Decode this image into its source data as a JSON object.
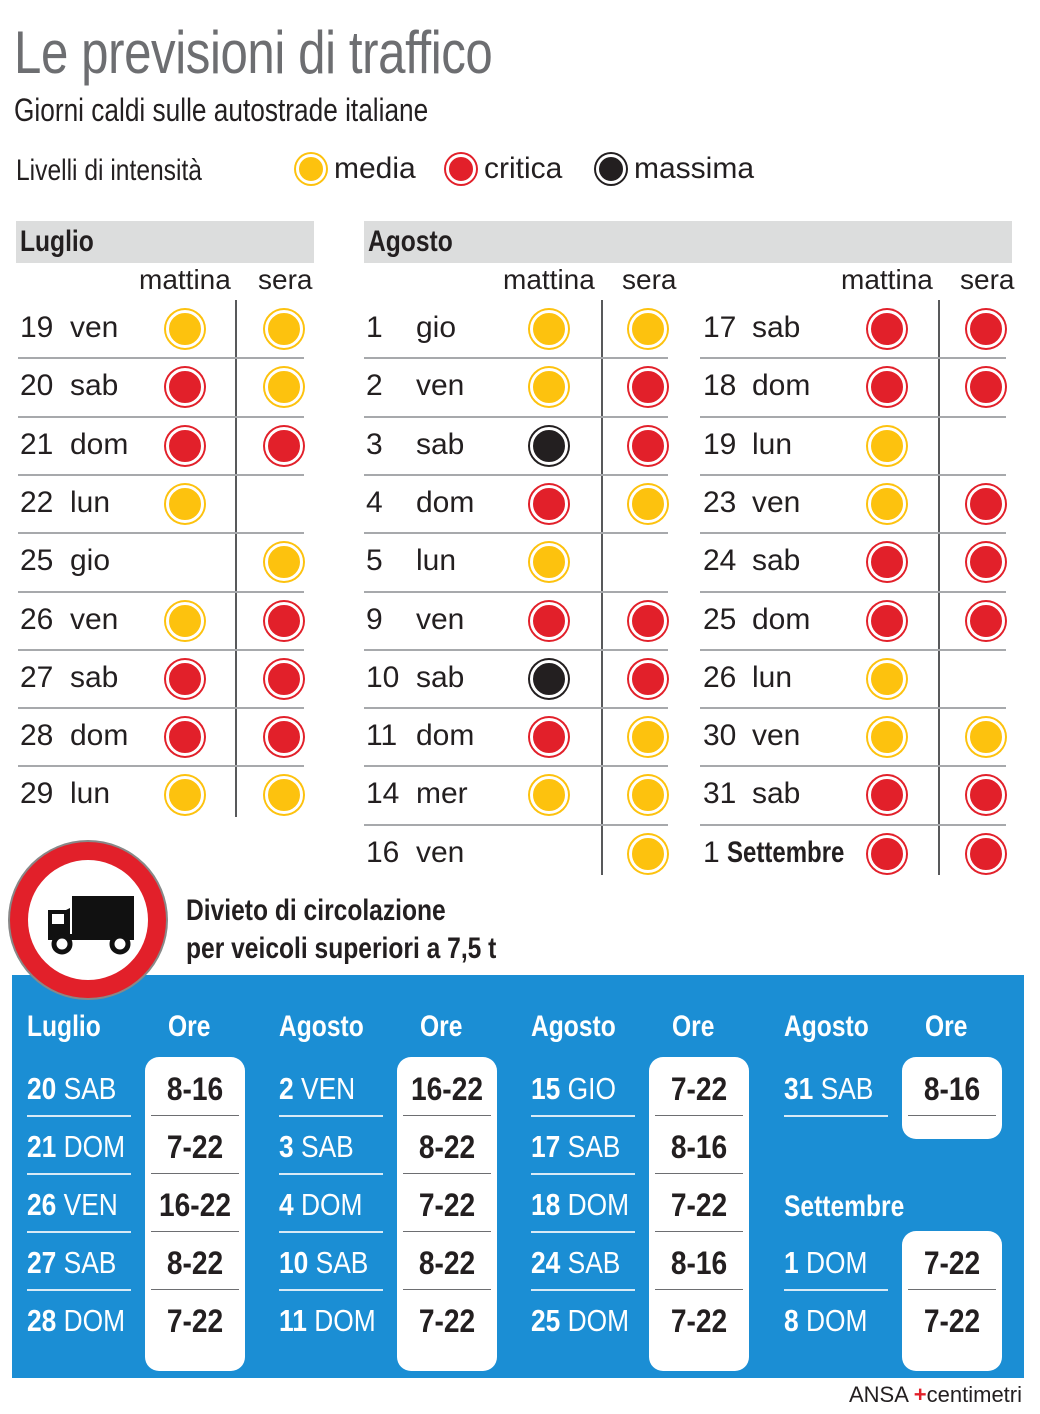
{
  "title": "Le previsioni di traffico",
  "subtitle": "Giorni caldi sulle autostrade italiane",
  "legend": {
    "label": "Livelli di intensità",
    "items": [
      {
        "key": "m",
        "label": "media",
        "color": "#fdc20e"
      },
      {
        "key": "c",
        "label": "critica",
        "color": "#e2202a"
      },
      {
        "key": "x",
        "label": "massima",
        "color": "#231f20"
      }
    ]
  },
  "columns": {
    "morning": "mattina",
    "evening": "sera"
  },
  "luglio": {
    "header": "Luglio",
    "rows": [
      {
        "day": "19",
        "wd": "ven",
        "am": "m",
        "pm": "m"
      },
      {
        "day": "20",
        "wd": "sab",
        "am": "c",
        "pm": "m"
      },
      {
        "day": "21",
        "wd": "dom",
        "am": "c",
        "pm": "c"
      },
      {
        "day": "22",
        "wd": "lun",
        "am": "m",
        "pm": ""
      },
      {
        "day": "25",
        "wd": "gio",
        "am": "",
        "pm": "m"
      },
      {
        "day": "26",
        "wd": "ven",
        "am": "m",
        "pm": "c"
      },
      {
        "day": "27",
        "wd": "sab",
        "am": "c",
        "pm": "c"
      },
      {
        "day": "28",
        "wd": "dom",
        "am": "c",
        "pm": "c"
      },
      {
        "day": "29",
        "wd": "lun",
        "am": "m",
        "pm": "m"
      }
    ]
  },
  "agosto": {
    "header": "Agosto",
    "rows_left": [
      {
        "day": "1",
        "wd": "gio",
        "am": "m",
        "pm": "m"
      },
      {
        "day": "2",
        "wd": "ven",
        "am": "m",
        "pm": "c"
      },
      {
        "day": "3",
        "wd": "sab",
        "am": "x",
        "pm": "c"
      },
      {
        "day": "4",
        "wd": "dom",
        "am": "c",
        "pm": "m"
      },
      {
        "day": "5",
        "wd": "lun",
        "am": "m",
        "pm": ""
      },
      {
        "day": "9",
        "wd": "ven",
        "am": "c",
        "pm": "c"
      },
      {
        "day": "10",
        "wd": "sab",
        "am": "x",
        "pm": "c"
      },
      {
        "day": "11",
        "wd": "dom",
        "am": "c",
        "pm": "m"
      },
      {
        "day": "14",
        "wd": "mer",
        "am": "m",
        "pm": "m"
      },
      {
        "day": "16",
        "wd": "ven",
        "am": "",
        "pm": "m"
      }
    ],
    "rows_right": [
      {
        "day": "17",
        "wd": "sab",
        "am": "c",
        "pm": "c"
      },
      {
        "day": "18",
        "wd": "dom",
        "am": "c",
        "pm": "c"
      },
      {
        "day": "19",
        "wd": "lun",
        "am": "m",
        "pm": ""
      },
      {
        "day": "23",
        "wd": "ven",
        "am": "m",
        "pm": "c"
      },
      {
        "day": "24",
        "wd": "sab",
        "am": "c",
        "pm": "c"
      },
      {
        "day": "25",
        "wd": "dom",
        "am": "c",
        "pm": "c"
      },
      {
        "day": "26",
        "wd": "lun",
        "am": "m",
        "pm": ""
      },
      {
        "day": "30",
        "wd": "ven",
        "am": "m",
        "pm": "m"
      },
      {
        "day": "31",
        "wd": "sab",
        "am": "c",
        "pm": "c"
      },
      {
        "day": "1",
        "wd": "Settembre",
        "am": "c",
        "pm": "c",
        "bold": true
      }
    ]
  },
  "ban": {
    "title_line1": "Divieto di circolazione",
    "title_line2": "per veicoli superiori a 7,5 t",
    "hours_label": "Ore",
    "groups": [
      {
        "month": "Luglio",
        "rows": [
          [
            "20",
            "SAB",
            "8-16"
          ],
          [
            "21",
            "DOM",
            "7-22"
          ],
          [
            "26",
            "VEN",
            "16-22"
          ],
          [
            "27",
            "SAB",
            "8-22"
          ],
          [
            "28",
            "DOM",
            "7-22"
          ]
        ]
      },
      {
        "month": "Agosto",
        "rows": [
          [
            "2",
            "VEN",
            "16-22"
          ],
          [
            "3",
            "SAB",
            "8-22"
          ],
          [
            "4",
            "DOM",
            "7-22"
          ],
          [
            "10",
            "SAB",
            "8-22"
          ],
          [
            "11",
            "DOM",
            "7-22"
          ]
        ]
      },
      {
        "month": "Agosto",
        "rows": [
          [
            "15",
            "GIO",
            "7-22"
          ],
          [
            "17",
            "SAB",
            "8-16"
          ],
          [
            "18",
            "DOM",
            "7-22"
          ],
          [
            "24",
            "SAB",
            "8-16"
          ],
          [
            "25",
            "DOM",
            "7-22"
          ]
        ]
      },
      {
        "month": "Agosto",
        "rows": [
          [
            "31",
            "SAB",
            "8-16"
          ]
        ]
      },
      {
        "month": "Settembre",
        "rows": [
          [
            "1",
            "DOM",
            "7-22"
          ],
          [
            "8",
            "DOM",
            "7-22"
          ]
        ]
      }
    ]
  },
  "credit": {
    "agency": "ANSA",
    "brand": "centimetri"
  }
}
